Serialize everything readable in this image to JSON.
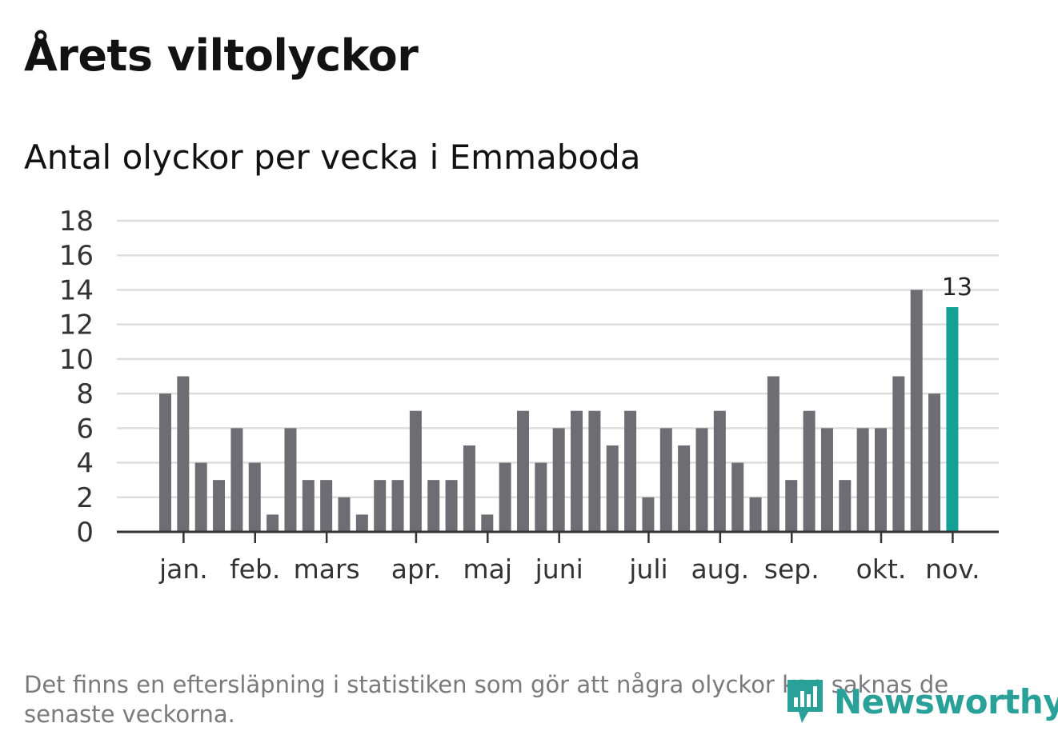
{
  "header": {
    "title": "Årets viltolyckor",
    "subtitle": "Antal olyckor per vecka i Emmaboda"
  },
  "footer": {
    "note": "Det finns en eftersläpning i statistiken som gör att några olyckor kan saknas de senaste veckorna.",
    "brand": "Newsworthy"
  },
  "colors": {
    "bar": "#6e6d73",
    "highlight": "#13a097",
    "grid": "#dddddd",
    "axis": "#333333",
    "brand": "#2aa198"
  },
  "chart_data": {
    "type": "bar",
    "title": "Antal olyckor per vecka i Emmaboda",
    "xlabel": "",
    "ylabel": "",
    "ylim": [
      0,
      18
    ],
    "yticks": [
      "0",
      "2",
      "4",
      "6",
      "8",
      "10",
      "12",
      "14",
      "16",
      "18"
    ],
    "values": [
      8,
      9,
      4,
      3,
      6,
      4,
      1,
      6,
      3,
      3,
      2,
      1,
      3,
      3,
      7,
      3,
      3,
      5,
      1,
      4,
      7,
      4,
      6,
      7,
      7,
      5,
      7,
      2,
      6,
      5,
      6,
      7,
      4,
      2,
      9,
      3,
      7,
      6,
      3,
      6,
      6,
      9,
      14,
      8,
      13
    ],
    "month_labels": [
      {
        "label": "jan.",
        "week": 1
      },
      {
        "label": "feb.",
        "week": 5
      },
      {
        "label": "mars",
        "week": 9
      },
      {
        "label": "apr.",
        "week": 14
      },
      {
        "label": "maj",
        "week": 18
      },
      {
        "label": "juni",
        "week": 22
      },
      {
        "label": "juli",
        "week": 27
      },
      {
        "label": "aug.",
        "week": 31
      },
      {
        "label": "sep.",
        "week": 35
      },
      {
        "label": "okt.",
        "week": 40
      },
      {
        "label": "nov.",
        "week": 44
      }
    ],
    "highlight_index": 44,
    "highlight_label": "13",
    "grid": true,
    "legend": "none"
  }
}
